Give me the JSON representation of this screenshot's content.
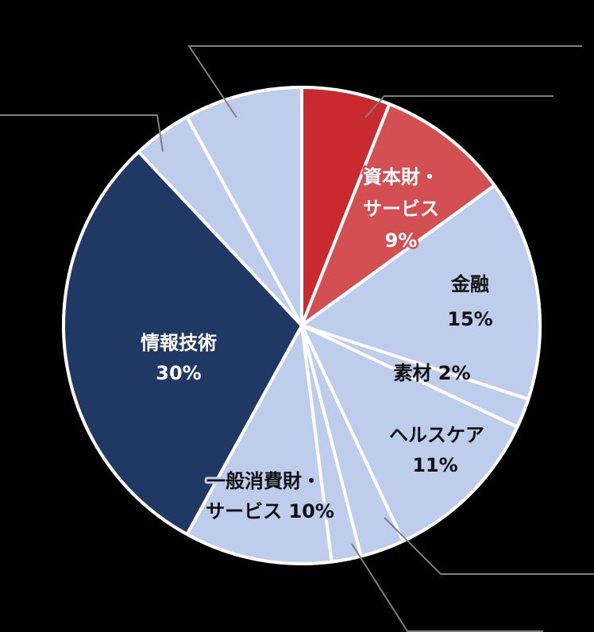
{
  "chart_data": {
    "type": "pie",
    "title": "",
    "start_angle_deg": 0,
    "direction": "clockwise",
    "center": [
      380,
      410
    ],
    "radius": 300,
    "slice_border_color": "#FFFFFF",
    "background": "#000000",
    "slices": [
      {
        "label": "",
        "value": 6,
        "color": "#C92A2F",
        "label_visible": false
      },
      {
        "label": "資本財・サービス",
        "value": 9,
        "color": "#D44F51",
        "label_visible": true,
        "display": [
          "資本財・",
          "サービス",
          "9%"
        ]
      },
      {
        "label": "金融",
        "value": 15,
        "color": "#BECDEB",
        "label_visible": true,
        "display": [
          "金融",
          "15%"
        ]
      },
      {
        "label": "素材",
        "value": 2,
        "color": "#BECDEB",
        "label_visible": true,
        "display": [
          "素材 2%"
        ]
      },
      {
        "label": "ヘルスケア",
        "value": 11,
        "color": "#BECDEB",
        "label_visible": true,
        "display": [
          "ヘルスケア",
          "11%"
        ]
      },
      {
        "label": "",
        "value": 3,
        "color": "#BECDEB",
        "label_visible": false
      },
      {
        "label": "",
        "value": 2,
        "color": "#BECDEB",
        "label_visible": false
      },
      {
        "label": "一般消費財・サービス",
        "value": 10,
        "color": "#BECDEB",
        "label_visible": true,
        "display": [
          "一般消費財・",
          "サービス 10%"
        ]
      },
      {
        "label": "情報技術",
        "value": 30,
        "color": "#203864",
        "label_visible": true,
        "display": [
          "情報技術",
          "30%"
        ]
      },
      {
        "label": "",
        "value": 4,
        "color": "#BECDEB",
        "label_visible": false
      },
      {
        "label": "",
        "value": 8,
        "color": "#BECDEB",
        "label_visible": false
      }
    ],
    "legend": "none",
    "leader_line_color": "#7F7F7F"
  },
  "labels": {
    "capital_goods": {
      "line1": "資本財・",
      "line2": "サービス",
      "line3": "9%"
    },
    "financials": {
      "line1": "金融",
      "line2": "15%"
    },
    "materials": {
      "line1": "素材 2%"
    },
    "healthcare": {
      "line1": "ヘルスケア",
      "line2": "11%"
    },
    "consumer_discretionary": {
      "line1": "一般消費財・",
      "line2": "サービス 10%"
    },
    "information_technology": {
      "line1": "情報技術",
      "line2": "30%"
    }
  }
}
